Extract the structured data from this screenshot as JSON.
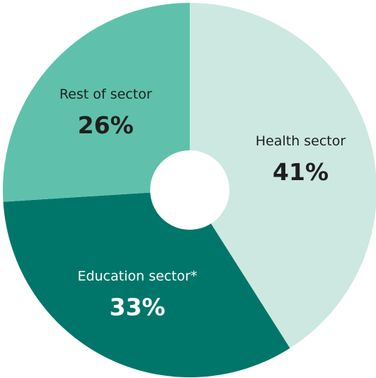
{
  "chart_data": {
    "type": "pie",
    "categories": [
      "Health sector",
      "Education sector*",
      "Rest of sector"
    ],
    "values": [
      41,
      33,
      26
    ],
    "value_labels": [
      "41%",
      "33%",
      "26%"
    ],
    "colors": [
      "#cce8e1",
      "#00766a",
      "#5fc1ab"
    ]
  }
}
